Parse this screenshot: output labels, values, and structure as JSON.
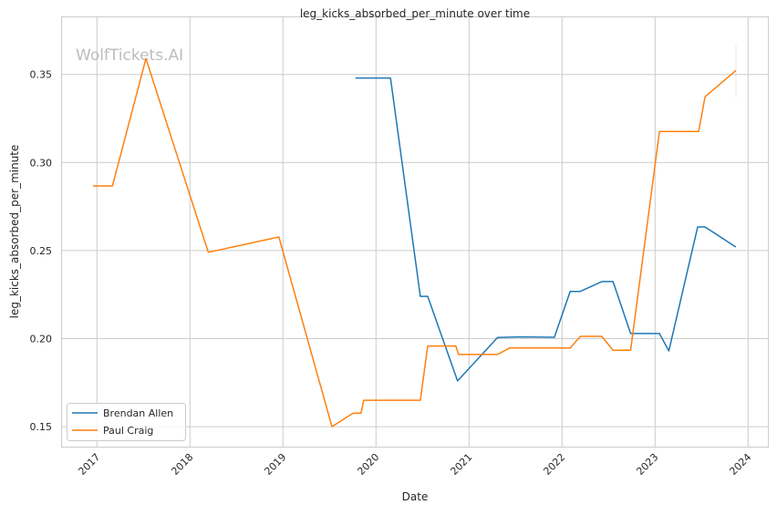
{
  "watermark": "WolfTickets.AI",
  "chart_data": {
    "type": "line",
    "title": "leg_kicks_absorbed_per_minute over time",
    "xlabel": "Date",
    "ylabel": "leg_kicks_absorbed_per_minute",
    "xlim": [
      "2016-10-01",
      "2024-03-01"
    ],
    "ylim": [
      0.139,
      0.378
    ],
    "x_ticks": [
      "2017",
      "2018",
      "2019",
      "2020",
      "2021",
      "2022",
      "2023",
      "2024"
    ],
    "y_ticks": [
      0.15,
      0.2,
      0.25,
      0.3,
      0.35
    ],
    "y_tick_labels": [
      "0.15",
      "0.20",
      "0.25",
      "0.30",
      "0.35"
    ],
    "grid": true,
    "legend_position": "bottom-left",
    "series": [
      {
        "name": "Brendan Allen",
        "color": "#1f77b4",
        "x": [
          "2019-10-12",
          "2020-02-27",
          "2020-06-23",
          "2020-07-22",
          "2020-11-16",
          "2021-04-23",
          "2021-07-20",
          "2021-12-02",
          "2022-02-02",
          "2022-03-14",
          "2022-06-06",
          "2022-07-20",
          "2022-09-27",
          "2023-01-18",
          "2023-02-24",
          "2023-06-17",
          "2023-07-16",
          "2023-11-14"
        ],
        "y": [
          0.348,
          0.348,
          0.224,
          0.224,
          0.176,
          0.2006,
          0.201,
          0.2008,
          0.2268,
          0.2268,
          0.2324,
          0.2324,
          0.2029,
          0.2029,
          0.193,
          0.2634,
          0.2634,
          0.252
        ]
      },
      {
        "name": "Paul Craig",
        "color": "#ff7f0e",
        "x": [
          "2016-12-16",
          "2017-03-03",
          "2017-07-12",
          "2018-03-14",
          "2018-12-16",
          "2019-07-12",
          "2019-10-04",
          "2019-11-03",
          "2019-11-14",
          "2020-06-23",
          "2020-07-22",
          "2020-11-09",
          "2020-11-20",
          "2021-04-23",
          "2021-06-10",
          "2022-02-02",
          "2022-03-14",
          "2022-06-06",
          "2022-07-20",
          "2022-09-27",
          "2023-01-18",
          "2023-06-21",
          "2023-07-16",
          "2023-11-14"
        ],
        "y": [
          0.2867,
          0.2867,
          0.359,
          0.249,
          0.2577,
          0.15,
          0.1577,
          0.1577,
          0.165,
          0.165,
          0.1958,
          0.1958,
          0.191,
          0.191,
          0.1947,
          0.1947,
          0.2013,
          0.2013,
          0.1934,
          0.1934,
          0.3176,
          0.3176,
          0.3373,
          0.3523
        ]
      }
    ]
  }
}
